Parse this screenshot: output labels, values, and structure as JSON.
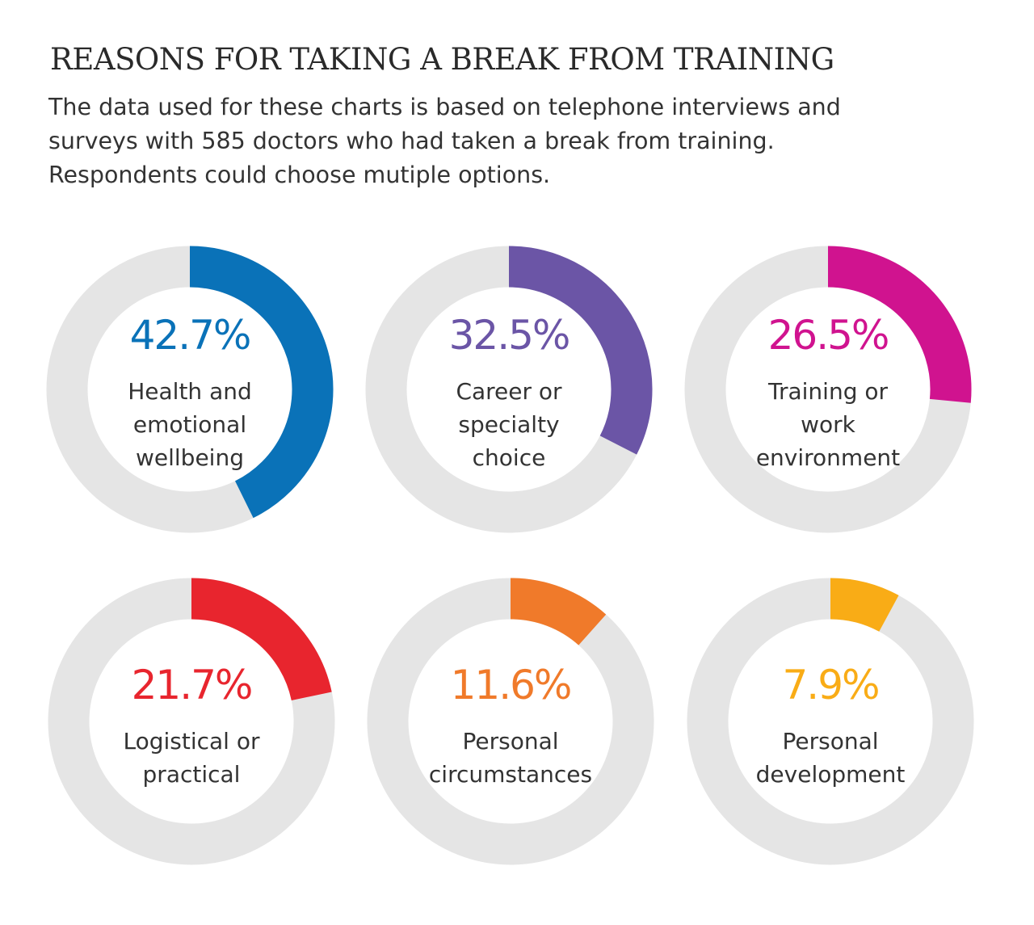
{
  "header": {
    "title": "REASONS FOR TAKING A BREAK FROM TRAINING",
    "subtitle": "The data used for these charts is based on telephone interviews and surveys with 585 doctors who had taken a break from training. Respondents could choose mutiple options."
  },
  "chart_data": {
    "type": "pie",
    "variant": "donut-small-multiples",
    "title": "REASONS FOR TAKING A BREAK FROM TRAINING",
    "unit": "%",
    "track_color": "#e5e5e5",
    "items": [
      {
        "value": 42.7,
        "value_label": "42.7%",
        "label_lines": [
          "Health and",
          "emotional",
          "wellbeing"
        ],
        "color": "#0a72b8"
      },
      {
        "value": 32.5,
        "value_label": "32.5%",
        "label_lines": [
          "Career or",
          "specialty",
          "choice"
        ],
        "color": "#6b55a6"
      },
      {
        "value": 26.5,
        "value_label": "26.5%",
        "label_lines": [
          "Training or",
          "work",
          "environment"
        ],
        "color": "#d0138f"
      },
      {
        "value": 21.7,
        "value_label": "21.7%",
        "label_lines": [
          "Logistical or",
          "practical"
        ],
        "color": "#e8252e"
      },
      {
        "value": 11.6,
        "value_label": "11.6%",
        "label_lines": [
          "Personal",
          "circumstances"
        ],
        "color": "#f07a2a"
      },
      {
        "value": 7.9,
        "value_label": "7.9%",
        "label_lines": [
          "Personal",
          "development"
        ],
        "color": "#f9ac16"
      }
    ]
  }
}
